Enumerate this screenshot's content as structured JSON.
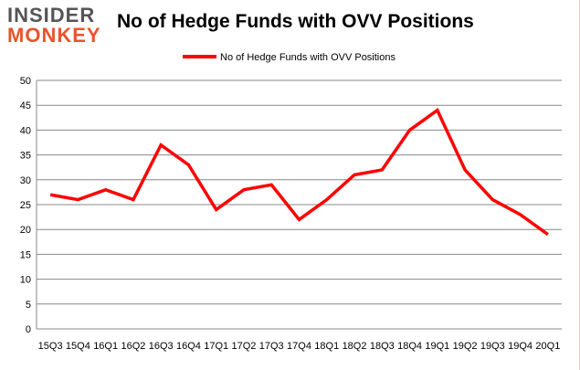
{
  "logo": {
    "line1": "INSIDER",
    "line2": "MONKEY"
  },
  "chart_data": {
    "type": "line",
    "title": "No of Hedge Funds with OVV Positions",
    "xlabel": "",
    "ylabel": "",
    "categories": [
      "15Q3",
      "15Q4",
      "16Q1",
      "16Q2",
      "16Q3",
      "16Q4",
      "17Q1",
      "17Q2",
      "17Q3",
      "17Q4",
      "18Q1",
      "18Q2",
      "18Q3",
      "18Q4",
      "19Q1",
      "19Q2",
      "19Q3",
      "19Q4",
      "20Q1"
    ],
    "series": [
      {
        "name": "No of Hedge Funds with OVV Positions",
        "color": "#ff0000",
        "values": [
          27,
          26,
          28,
          26,
          37,
          33,
          24,
          28,
          29,
          22,
          26,
          31,
          32,
          40,
          44,
          32,
          26,
          23,
          19
        ]
      }
    ],
    "ylim": [
      0,
      50
    ],
    "yticks": [
      0,
      5,
      10,
      15,
      20,
      25,
      30,
      35,
      40,
      45,
      50
    ],
    "grid": true,
    "legend": "top-center"
  }
}
